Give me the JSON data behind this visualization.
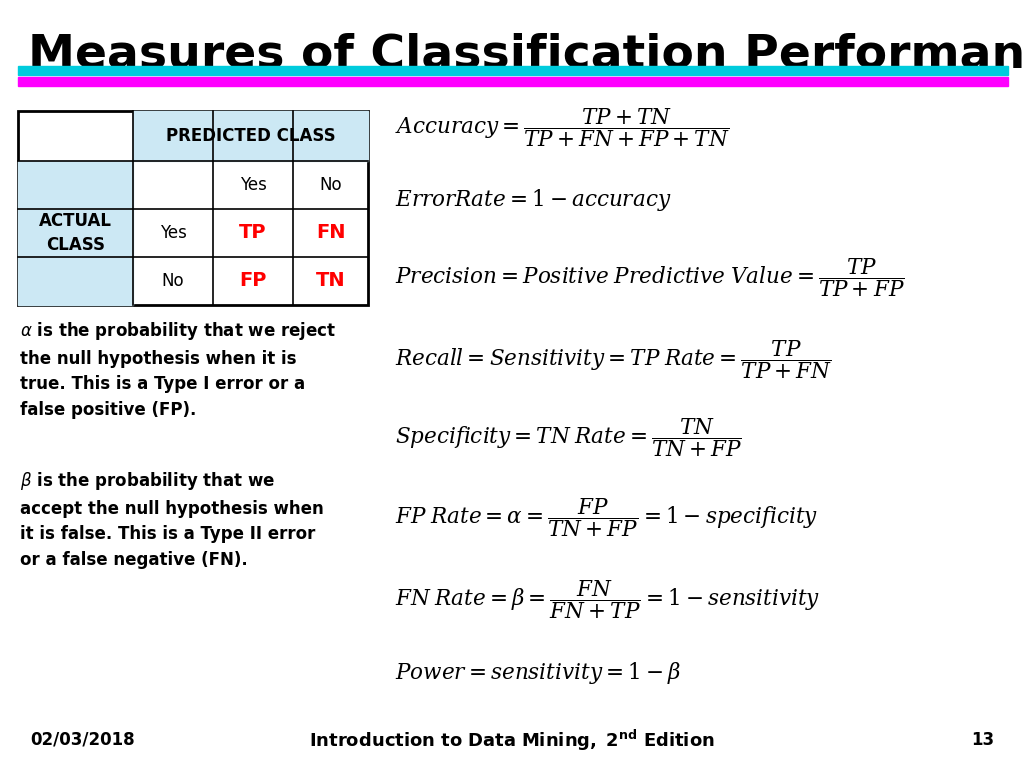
{
  "title": "Measures of Classification Performance",
  "title_fontsize": 34,
  "title_color": "#000000",
  "line1_color": "#00CCDD",
  "line2_color": "#FF00FF",
  "bg_color": "#FFFFFF",
  "table_header_bg": "#CCE8F4",
  "table_red": "#FF0000",
  "footer_date": "02/03/2018",
  "footer_page": "13"
}
